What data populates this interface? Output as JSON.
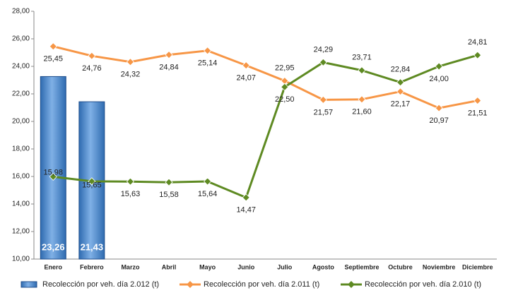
{
  "chart_data": {
    "type": "bar-line",
    "categories": [
      "Enero",
      "Febrero",
      "Marzo",
      "Abril",
      "Mayo",
      "Junio",
      "Julio",
      "Agosto",
      "Septiembre",
      "Octubre",
      "Noviembre",
      "Diciembre"
    ],
    "series": [
      {
        "name": "Recolección por veh. día 2.012 (t)",
        "type": "bar",
        "color": "#4a86c8",
        "values": [
          23.26,
          21.43,
          null,
          null,
          null,
          null,
          null,
          null,
          null,
          null,
          null,
          null
        ],
        "value_labels": [
          "23,26",
          "21,43",
          null,
          null,
          null,
          null,
          null,
          null,
          null,
          null,
          null,
          null
        ]
      },
      {
        "name": "Recolección por veh. día 2.011 (t)",
        "type": "line",
        "color": "#f79646",
        "values": [
          25.45,
          24.76,
          24.32,
          24.84,
          25.14,
          24.07,
          22.95,
          21.57,
          21.6,
          22.17,
          20.97,
          21.51
        ],
        "value_labels": [
          "25,45",
          "24,76",
          "24,32",
          "24,84",
          "25,14",
          "24,07",
          "22,95",
          "21,57",
          "21,60",
          "22,17",
          "20,97",
          "21,51"
        ]
      },
      {
        "name": "Recolección por veh. día 2.010 (t)",
        "type": "line",
        "color": "#5e8a22",
        "values": [
          15.98,
          15.65,
          15.63,
          15.58,
          15.64,
          14.47,
          22.5,
          24.29,
          23.71,
          22.84,
          24.0,
          24.81
        ],
        "value_labels": [
          "15,98",
          "15,65",
          "15,63",
          "15,58",
          "15,64",
          "14,47",
          "22,50",
          "24,29",
          "23,71",
          "22,84",
          "24,00",
          "24,81"
        ]
      }
    ],
    "ylim": [
      10,
      28
    ],
    "yticks": [
      {
        "value": 10,
        "label": "10,00"
      },
      {
        "value": 12,
        "label": "12,00"
      },
      {
        "value": 14,
        "label": "14,00"
      },
      {
        "value": 16,
        "label": "16,00"
      },
      {
        "value": 18,
        "label": "18,00"
      },
      {
        "value": 20,
        "label": "20,00"
      },
      {
        "value": 22,
        "label": "22,00"
      },
      {
        "value": 24,
        "label": "24,00"
      },
      {
        "value": 26,
        "label": "26,00"
      },
      {
        "value": 28,
        "label": "28,00"
      }
    ],
    "legend": "bottom"
  }
}
